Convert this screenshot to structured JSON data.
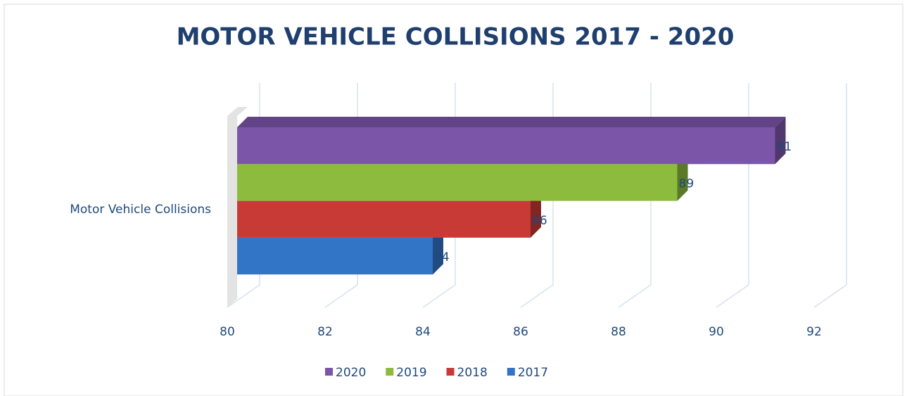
{
  "chart_data": {
    "type": "bar",
    "orientation": "horizontal",
    "title": "MOTOR VEHICLE COLLISIONS 2017 - 2020",
    "categories": [
      "Motor Vehicle Collisions"
    ],
    "series": [
      {
        "name": "2020",
        "color": "#7b55a8",
        "values": [
          91
        ]
      },
      {
        "name": "2019",
        "color": "#8dbb3e",
        "values": [
          89
        ]
      },
      {
        "name": "2018",
        "color": "#c83a36",
        "values": [
          86
        ]
      },
      {
        "name": "2017",
        "color": "#3275c6",
        "values": [
          84
        ]
      }
    ],
    "xlim": [
      80,
      92
    ],
    "xticks": [
      80,
      82,
      84,
      86,
      88,
      90,
      92
    ],
    "grid": true,
    "legend": "bottom"
  }
}
